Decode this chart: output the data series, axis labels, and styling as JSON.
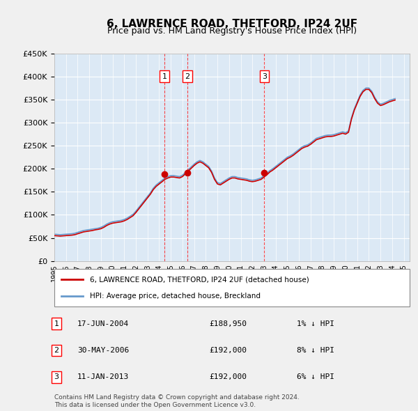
{
  "title": "6, LAWRENCE ROAD, THETFORD, IP24 2UF",
  "subtitle": "Price paid vs. HM Land Registry's House Price Index (HPI)",
  "ylabel_ticks": [
    "£0",
    "£50K",
    "£100K",
    "£150K",
    "£200K",
    "£250K",
    "£300K",
    "£350K",
    "£400K",
    "£450K"
  ],
  "ylim": [
    0,
    450000
  ],
  "xlim_start": 1995.0,
  "xlim_end": 2025.5,
  "background_color": "#dce9f5",
  "plot_bg": "#dce9f5",
  "grid_color": "#ffffff",
  "transactions": [
    {
      "num": 1,
      "date_str": "17-JUN-2004",
      "price": 188950,
      "hpi_diff": "1% ↓ HPI",
      "year": 2004.46
    },
    {
      "num": 2,
      "date_str": "30-MAY-2006",
      "price": 192000,
      "hpi_diff": "8% ↓ HPI",
      "year": 2006.41
    },
    {
      "num": 3,
      "date_str": "11-JAN-2013",
      "price": 192000,
      "hpi_diff": "6% ↓ HPI",
      "year": 2013.03
    }
  ],
  "legend_line1": "6, LAWRENCE ROAD, THETFORD, IP24 2UF (detached house)",
  "legend_line2": "HPI: Average price, detached house, Breckland",
  "footer": "Contains HM Land Registry data © Crown copyright and database right 2024.\nThis data is licensed under the Open Government Licence v3.0.",
  "red_line_color": "#cc0000",
  "blue_line_color": "#6699cc",
  "hpi_data_x": [
    1995.0,
    1995.25,
    1995.5,
    1995.75,
    1996.0,
    1996.25,
    1996.5,
    1996.75,
    1997.0,
    1997.25,
    1997.5,
    1997.75,
    1998.0,
    1998.25,
    1998.5,
    1998.75,
    1999.0,
    1999.25,
    1999.5,
    1999.75,
    2000.0,
    2000.25,
    2000.5,
    2000.75,
    2001.0,
    2001.25,
    2001.5,
    2001.75,
    2002.0,
    2002.25,
    2002.5,
    2002.75,
    2003.0,
    2003.25,
    2003.5,
    2003.75,
    2004.0,
    2004.25,
    2004.5,
    2004.75,
    2005.0,
    2005.25,
    2005.5,
    2005.75,
    2006.0,
    2006.25,
    2006.5,
    2006.75,
    2007.0,
    2007.25,
    2007.5,
    2007.75,
    2008.0,
    2008.25,
    2008.5,
    2008.75,
    2009.0,
    2009.25,
    2009.5,
    2009.75,
    2010.0,
    2010.25,
    2010.5,
    2010.75,
    2011.0,
    2011.25,
    2011.5,
    2011.75,
    2012.0,
    2012.25,
    2012.5,
    2012.75,
    2013.0,
    2013.25,
    2013.5,
    2013.75,
    2014.0,
    2014.25,
    2014.5,
    2014.75,
    2015.0,
    2015.25,
    2015.5,
    2015.75,
    2016.0,
    2016.25,
    2016.5,
    2016.75,
    2017.0,
    2017.25,
    2017.5,
    2017.75,
    2018.0,
    2018.25,
    2018.5,
    2018.75,
    2019.0,
    2019.25,
    2019.5,
    2019.75,
    2020.0,
    2020.25,
    2020.5,
    2020.75,
    2021.0,
    2021.25,
    2021.5,
    2021.75,
    2022.0,
    2022.25,
    2022.5,
    2022.75,
    2023.0,
    2023.25,
    2023.5,
    2023.75,
    2024.0,
    2024.25
  ],
  "hpi_data_y": [
    58000,
    57500,
    57000,
    57500,
    58000,
    58500,
    59000,
    60000,
    62000,
    64000,
    66000,
    67000,
    68000,
    69000,
    70000,
    71000,
    73000,
    76000,
    80000,
    83000,
    85000,
    86000,
    87000,
    88000,
    90000,
    93000,
    97000,
    101000,
    108000,
    116000,
    124000,
    132000,
    140000,
    148000,
    158000,
    165000,
    170000,
    175000,
    180000,
    183000,
    185000,
    185000,
    184000,
    183000,
    186000,
    192000,
    198000,
    204000,
    210000,
    215000,
    218000,
    215000,
    210000,
    205000,
    195000,
    180000,
    170000,
    168000,
    172000,
    176000,
    180000,
    183000,
    183000,
    181000,
    180000,
    179000,
    178000,
    176000,
    175000,
    176000,
    178000,
    180000,
    185000,
    190000,
    196000,
    200000,
    205000,
    210000,
    215000,
    220000,
    225000,
    228000,
    232000,
    237000,
    242000,
    247000,
    250000,
    252000,
    256000,
    261000,
    266000,
    268000,
    270000,
    272000,
    273000,
    273000,
    274000,
    276000,
    278000,
    280000,
    278000,
    282000,
    310000,
    330000,
    345000,
    360000,
    370000,
    375000,
    375000,
    368000,
    355000,
    345000,
    340000,
    342000,
    345000,
    348000,
    350000,
    352000
  ],
  "red_data_x": [
    1995.0,
    1995.25,
    1995.5,
    1995.75,
    1996.0,
    1996.25,
    1996.5,
    1996.75,
    1997.0,
    1997.25,
    1997.5,
    1997.75,
    1998.0,
    1998.25,
    1998.5,
    1998.75,
    1999.0,
    1999.25,
    1999.5,
    1999.75,
    2000.0,
    2000.25,
    2000.5,
    2000.75,
    2001.0,
    2001.25,
    2001.5,
    2001.75,
    2002.0,
    2002.25,
    2002.5,
    2002.75,
    2003.0,
    2003.25,
    2003.5,
    2003.75,
    2004.0,
    2004.25,
    2004.5,
    2004.75,
    2005.0,
    2005.25,
    2005.5,
    2005.75,
    2006.0,
    2006.25,
    2006.5,
    2006.75,
    2007.0,
    2007.25,
    2007.5,
    2007.75,
    2008.0,
    2008.25,
    2008.5,
    2008.75,
    2009.0,
    2009.25,
    2009.5,
    2009.75,
    2010.0,
    2010.25,
    2010.5,
    2010.75,
    2011.0,
    2011.25,
    2011.5,
    2011.75,
    2012.0,
    2012.25,
    2012.5,
    2012.75,
    2013.0,
    2013.25,
    2013.5,
    2013.75,
    2014.0,
    2014.25,
    2014.5,
    2014.75,
    2015.0,
    2015.25,
    2015.5,
    2015.75,
    2016.0,
    2016.25,
    2016.5,
    2016.75,
    2017.0,
    2017.25,
    2017.5,
    2017.75,
    2018.0,
    2018.25,
    2018.5,
    2018.75,
    2019.0,
    2019.25,
    2019.5,
    2019.75,
    2020.0,
    2020.25,
    2020.5,
    2020.75,
    2021.0,
    2021.25,
    2021.5,
    2021.75,
    2022.0,
    2022.25,
    2022.5,
    2022.75,
    2023.0,
    2023.25,
    2023.5,
    2023.75,
    2024.0,
    2024.25
  ],
  "red_data_y": [
    55000,
    54500,
    54000,
    54500,
    55000,
    55500,
    56000,
    57000,
    59000,
    61000,
    63000,
    64000,
    65000,
    66000,
    67500,
    68500,
    70000,
    73000,
    77000,
    80000,
    82000,
    83000,
    84000,
    85000,
    87000,
    90000,
    94000,
    98000,
    105000,
    113000,
    121000,
    129000,
    137000,
    145000,
    155000,
    162000,
    167000,
    172000,
    177000,
    180000,
    182000,
    182000,
    181000,
    180000,
    183000,
    189000,
    195000,
    201000,
    207000,
    212000,
    215000,
    212000,
    207000,
    202000,
    192000,
    177000,
    167000,
    165000,
    169000,
    173000,
    177000,
    180000,
    180000,
    178000,
    177000,
    176000,
    175000,
    173000,
    172000,
    173000,
    175000,
    177000,
    182000,
    187000,
    193000,
    197000,
    202000,
    207000,
    212000,
    217000,
    222000,
    225000,
    229000,
    234000,
    239000,
    244000,
    247000,
    249000,
    253000,
    258000,
    263000,
    265000,
    267000,
    269000,
    270000,
    270000,
    271000,
    273000,
    275000,
    277000,
    275000,
    279000,
    307000,
    327000,
    342000,
    357000,
    367000,
    372000,
    372000,
    365000,
    352000,
    342000,
    337000,
    339000,
    342000,
    345000,
    347000,
    349000
  ]
}
